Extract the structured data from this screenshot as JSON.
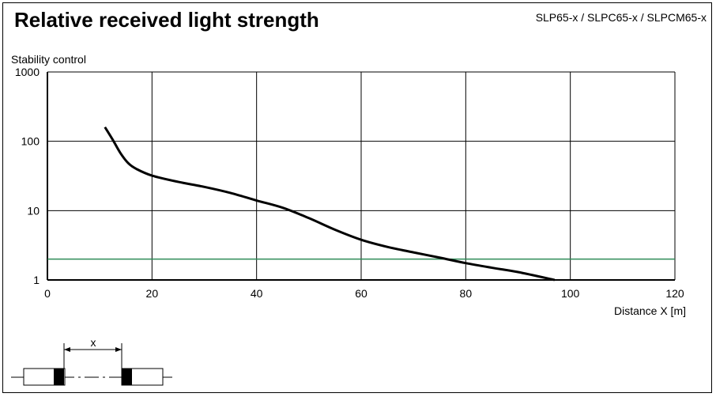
{
  "header": {
    "title": "Relative received light strength",
    "model": "SLP65-x / SLPC65-x / SLPCM65-x"
  },
  "chart_data": {
    "type": "line",
    "title": "Relative received light strength",
    "ylabel": "Stability control",
    "xlabel": "Distance X [m]",
    "x_scale": "linear",
    "y_scale": "log",
    "xlim": [
      0,
      120
    ],
    "ylim": [
      1,
      1000
    ],
    "x_ticks": [
      "0",
      "20",
      "40",
      "60",
      "80",
      "100",
      "120"
    ],
    "y_ticks": [
      "1",
      "10",
      "100",
      "1000"
    ],
    "grid": true,
    "series": [
      {
        "color": "#000000",
        "x": [
          11,
          12.5,
          14,
          15.5,
          17,
          20,
          25,
          30,
          35,
          40,
          45,
          50,
          55,
          60,
          65,
          70,
          75,
          80,
          85,
          90,
          97
        ],
        "y": [
          160,
          105,
          67,
          48,
          40,
          32,
          26,
          22,
          18,
          14,
          11,
          7.8,
          5.3,
          3.8,
          3.0,
          2.5,
          2.1,
          1.75,
          1.5,
          1.3,
          1.0
        ]
      }
    ],
    "threshold": {
      "y": 2,
      "color": "#2e8b57"
    }
  },
  "diagram": {
    "distance_label": "x"
  }
}
